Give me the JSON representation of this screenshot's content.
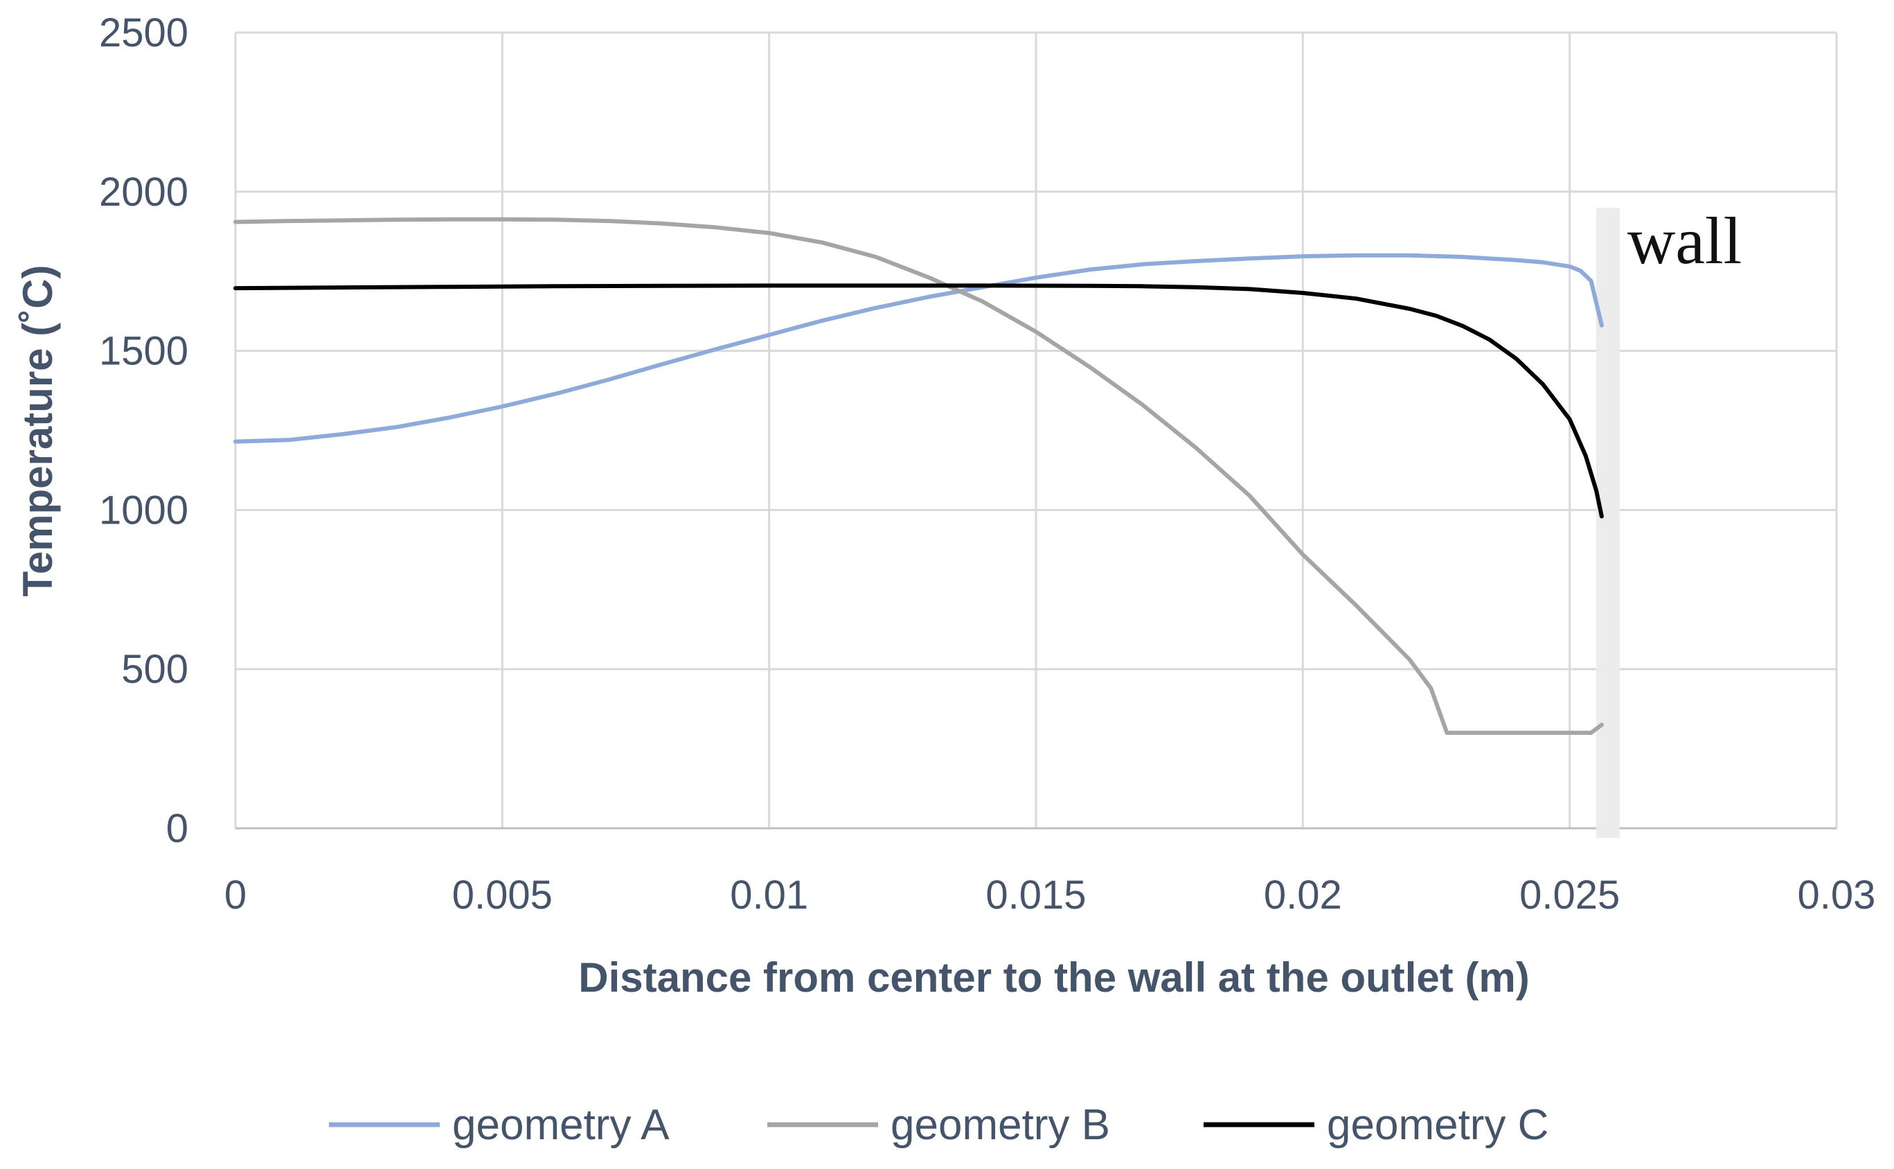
{
  "chart_data": {
    "type": "line",
    "title": "",
    "xlabel": "Distance from center to the wall at the outlet (m)",
    "ylabel": "Temperature (˚C)",
    "xlim": [
      0,
      0.03
    ],
    "ylim": [
      0,
      2500
    ],
    "x_ticks": [
      "0",
      "0.005",
      "0.01",
      "0.015",
      "0.02",
      "0.025",
      "0.03"
    ],
    "y_ticks": [
      "0",
      "500",
      "1000",
      "1500",
      "2000",
      "2500"
    ],
    "x_tick_values": [
      0,
      0.005,
      0.01,
      0.015,
      0.02,
      0.025,
      0.03
    ],
    "y_tick_values": [
      0,
      500,
      1000,
      1500,
      2000,
      2500
    ],
    "grid": true,
    "legend_position": "bottom",
    "annotation": {
      "text": "wall",
      "x": 0.0256
    },
    "series": [
      {
        "name": "geometry A",
        "color": "#8eaadb",
        "x": [
          0,
          0.001,
          0.002,
          0.003,
          0.004,
          0.005,
          0.006,
          0.007,
          0.008,
          0.009,
          0.01,
          0.011,
          0.012,
          0.013,
          0.014,
          0.015,
          0.016,
          0.017,
          0.018,
          0.019,
          0.02,
          0.021,
          0.022,
          0.023,
          0.024,
          0.0245,
          0.025,
          0.0252,
          0.0254,
          0.0256
        ],
        "y": [
          1215,
          1220,
          1238,
          1260,
          1290,
          1325,
          1365,
          1410,
          1458,
          1505,
          1550,
          1595,
          1635,
          1670,
          1700,
          1730,
          1755,
          1772,
          1782,
          1790,
          1797,
          1800,
          1800,
          1795,
          1785,
          1778,
          1765,
          1752,
          1720,
          1580
        ]
      },
      {
        "name": "geometry B",
        "color": "#a5a5a5",
        "x": [
          0,
          0.001,
          0.002,
          0.003,
          0.004,
          0.005,
          0.006,
          0.007,
          0.008,
          0.009,
          0.01,
          0.011,
          0.012,
          0.013,
          0.014,
          0.015,
          0.016,
          0.017,
          0.018,
          0.019,
          0.02,
          0.021,
          0.022,
          0.0224,
          0.0227,
          0.023,
          0.024,
          0.025,
          0.0254,
          0.0256
        ],
        "y": [
          1905,
          1908,
          1910,
          1912,
          1913,
          1913,
          1912,
          1908,
          1900,
          1888,
          1870,
          1840,
          1795,
          1730,
          1655,
          1560,
          1450,
          1330,
          1195,
          1045,
          860,
          700,
          530,
          440,
          300,
          300,
          300,
          300,
          300,
          325
        ]
      },
      {
        "name": "geometry C",
        "color": "#000000",
        "x": [
          0,
          0.002,
          0.004,
          0.006,
          0.008,
          0.01,
          0.012,
          0.014,
          0.016,
          0.017,
          0.018,
          0.019,
          0.02,
          0.021,
          0.022,
          0.0225,
          0.023,
          0.0235,
          0.024,
          0.0245,
          0.025,
          0.0253,
          0.0255,
          0.0256
        ],
        "y": [
          1697,
          1699,
          1701,
          1703,
          1704,
          1705,
          1705,
          1705,
          1704,
          1703,
          1700,
          1694,
          1682,
          1664,
          1632,
          1610,
          1578,
          1535,
          1475,
          1395,
          1285,
          1170,
          1060,
          980
        ]
      }
    ]
  }
}
